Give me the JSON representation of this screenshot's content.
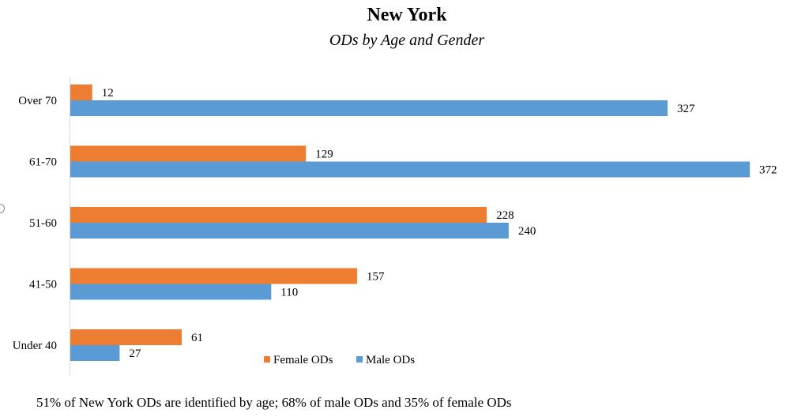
{
  "chart_data": {
    "type": "bar",
    "orientation": "horizontal",
    "title": "New York",
    "subtitle": "ODs by Age and Gender",
    "categories": [
      "Over 70",
      "61-70",
      "51-60",
      "41-50",
      "Under 40"
    ],
    "series": [
      {
        "name": "Female ODs",
        "color": "#ed7d31",
        "values": [
          12,
          129,
          228,
          157,
          61
        ]
      },
      {
        "name": "Male ODs",
        "color": "#5b9bd5",
        "values": [
          327,
          372,
          240,
          110,
          27
        ]
      }
    ],
    "xlim": [
      0,
      372
    ],
    "grid": false,
    "legend": "bottom-center",
    "footnote": "51% of New York ODs are identified by age; 68% of male ODs and 35% of female ODs"
  }
}
